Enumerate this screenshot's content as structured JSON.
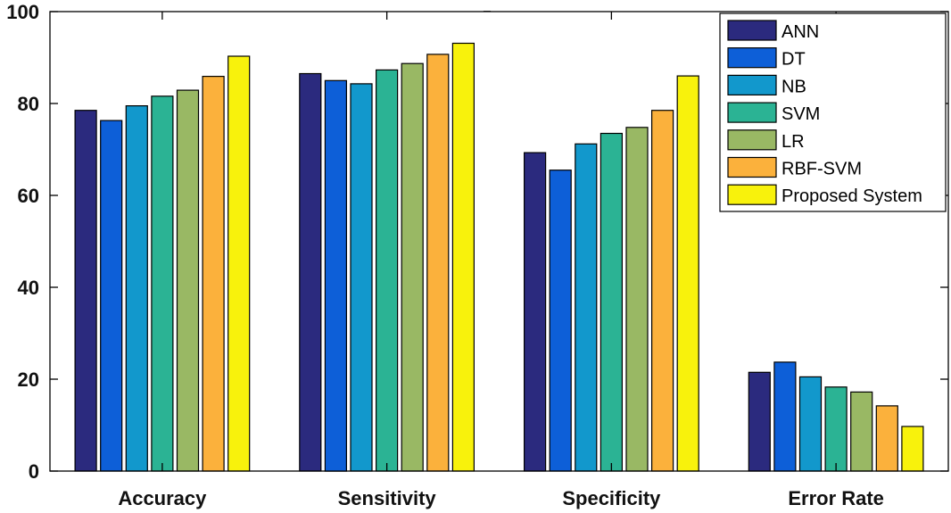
{
  "chart_data": {
    "type": "bar",
    "title": "_",
    "xlabel": "",
    "ylabel": "",
    "ylim": [
      0,
      100
    ],
    "yticks": [
      0,
      20,
      40,
      60,
      80,
      100
    ],
    "grid": false,
    "legend_position": "top-right",
    "categories": [
      "Accuracy",
      "Sensitivity",
      "Specificity",
      "Error Rate"
    ],
    "series": [
      {
        "name": "ANN",
        "color": "#2b2a7e",
        "values": [
          78.5,
          86.5,
          69.3,
          21.5
        ]
      },
      {
        "name": "DT",
        "color": "#0d5fd8",
        "values": [
          76.3,
          85.0,
          65.5,
          23.7
        ]
      },
      {
        "name": "NB",
        "color": "#1298cc",
        "values": [
          79.5,
          84.3,
          71.2,
          20.5
        ]
      },
      {
        "name": "SVM",
        "color": "#2bb394",
        "values": [
          81.6,
          87.3,
          73.5,
          18.3
        ]
      },
      {
        "name": "LR",
        "color": "#99b864",
        "values": [
          82.9,
          88.7,
          74.8,
          17.2
        ]
      },
      {
        "name": "RBF-SVM",
        "color": "#fbb13c",
        "values": [
          85.9,
          90.7,
          78.5,
          14.2
        ]
      },
      {
        "name": "Proposed System",
        "color": "#f8f20c",
        "values": [
          90.3,
          93.1,
          86.0,
          9.7
        ]
      }
    ]
  }
}
